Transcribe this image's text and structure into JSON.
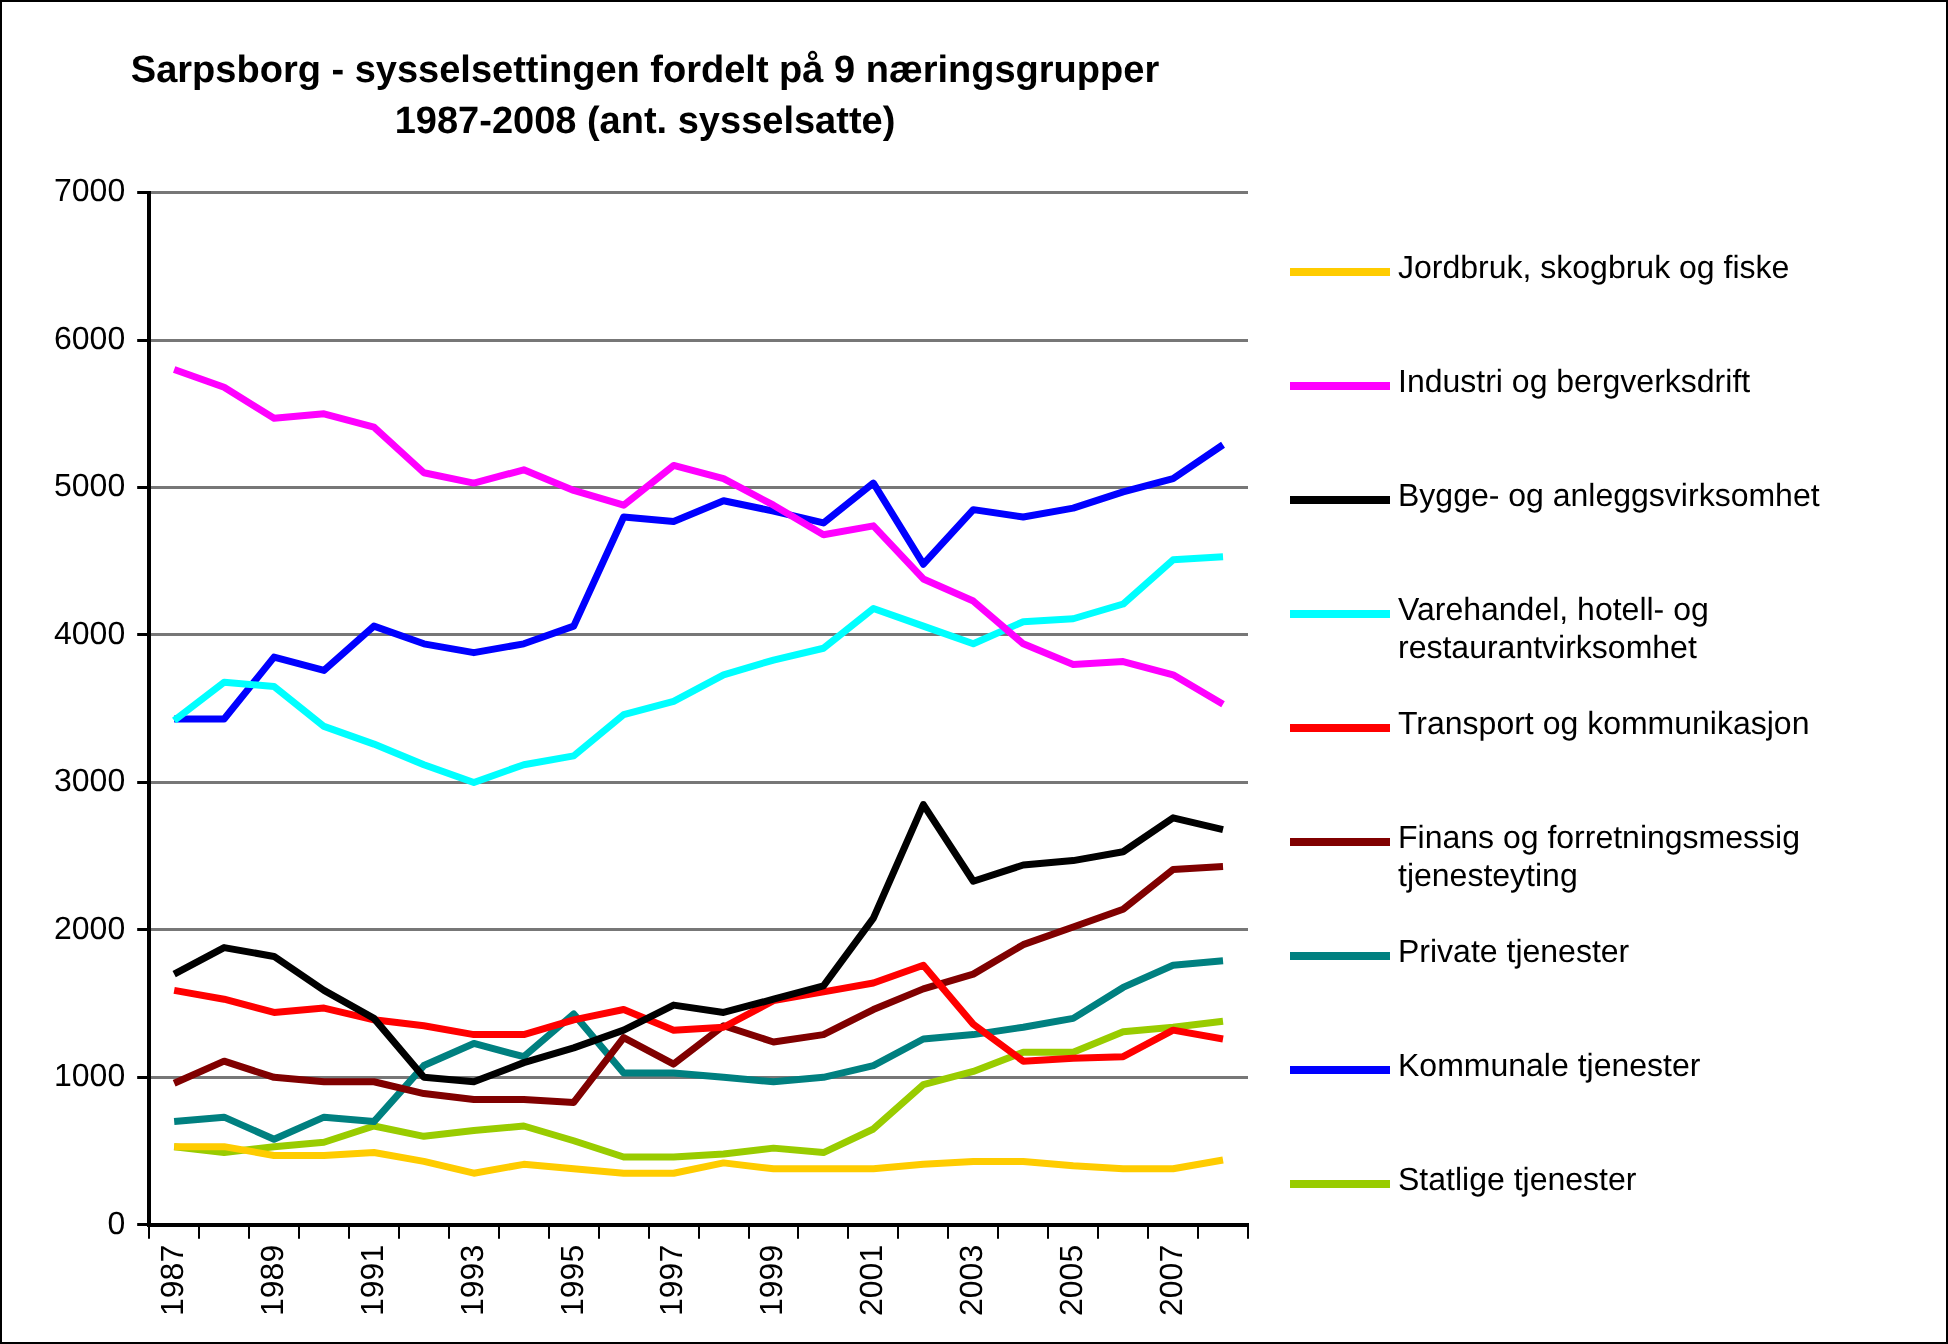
{
  "chart_data": {
    "type": "line",
    "title": "Sarpsborg - sysselsettingen fordelt på 9 næringsgrupper\n1987-2008 (ant. sysselsatte)",
    "categories": [
      "1987",
      null,
      "1989",
      null,
      "1991",
      null,
      "1993",
      null,
      "1995",
      null,
      "1997",
      null,
      "1999",
      null,
      "2001",
      null,
      "2003",
      null,
      "2005",
      null,
      "2007",
      null
    ],
    "ylim": [
      0,
      7000
    ],
    "yticks": [
      0,
      1000,
      2000,
      3000,
      4000,
      5000,
      6000,
      7000
    ],
    "grid": "y",
    "legend": "right",
    "series": [
      {
        "name": "Jordbruk, skogbruk og fiske",
        "color": "#ffcc00",
        "values": [
          530,
          530,
          470,
          470,
          490,
          430,
          350,
          410,
          380,
          350,
          350,
          420,
          380,
          380,
          380,
          410,
          430,
          430,
          400,
          380,
          380,
          440
        ]
      },
      {
        "name": "Industri og bergverksdrift",
        "color": "#ff00ff",
        "values": [
          5800,
          5680,
          5470,
          5500,
          5410,
          5100,
          5030,
          5120,
          4980,
          4880,
          5150,
          5060,
          4880,
          4680,
          4740,
          4380,
          4230,
          3940,
          3800,
          3820,
          3730,
          3530
        ]
      },
      {
        "name": "Bygge- og anleggsvirksomhet",
        "color": "#000000",
        "values": [
          1700,
          1880,
          1820,
          1590,
          1400,
          1000,
          970,
          1100,
          1200,
          1320,
          1490,
          1440,
          1530,
          1620,
          2080,
          2850,
          2330,
          2440,
          2470,
          2530,
          2760,
          2680
        ]
      },
      {
        "name": "Varehandel, hotell- og restaurantvirksomhet",
        "color": "#00ffff",
        "values": [
          3420,
          3680,
          3650,
          3380,
          3260,
          3120,
          3000,
          3120,
          3180,
          3460,
          3550,
          3730,
          3830,
          3910,
          4180,
          4060,
          3940,
          4090,
          4110,
          4210,
          4510,
          4530
        ]
      },
      {
        "name": "Transport og kommunikasjon",
        "color": "#ff0000",
        "values": [
          1590,
          1530,
          1440,
          1470,
          1390,
          1350,
          1290,
          1290,
          1390,
          1460,
          1320,
          1340,
          1520,
          1580,
          1640,
          1760,
          1360,
          1110,
          1130,
          1140,
          1320,
          1260
        ]
      },
      {
        "name": "Finans og forretningsmessig tjenesteyting",
        "color": "#800000",
        "values": [
          960,
          1110,
          1000,
          970,
          970,
          890,
          850,
          850,
          830,
          1270,
          1090,
          1350,
          1240,
          1290,
          1460,
          1600,
          1700,
          1900,
          2020,
          2140,
          2410,
          2430
        ]
      },
      {
        "name": "Private tjenester",
        "color": "#008080",
        "values": [
          700,
          730,
          580,
          730,
          700,
          1080,
          1230,
          1140,
          1430,
          1030,
          1030,
          1000,
          970,
          1000,
          1080,
          1260,
          1290,
          1340,
          1400,
          1610,
          1760,
          1790
        ]
      },
      {
        "name": "Kommunale tjenester",
        "color": "#0000ff",
        "values": [
          3430,
          3430,
          3850,
          3760,
          4060,
          3940,
          3880,
          3940,
          4060,
          4800,
          4770,
          4910,
          4840,
          4760,
          5030,
          4480,
          4850,
          4800,
          4860,
          4970,
          5060,
          5290
        ]
      },
      {
        "name": "Statlige tjenester",
        "color": "#99cc00",
        "values": [
          530,
          490,
          530,
          560,
          670,
          600,
          640,
          670,
          570,
          460,
          460,
          480,
          520,
          490,
          650,
          950,
          1040,
          1170,
          1170,
          1310,
          1340,
          1380
        ]
      }
    ]
  }
}
